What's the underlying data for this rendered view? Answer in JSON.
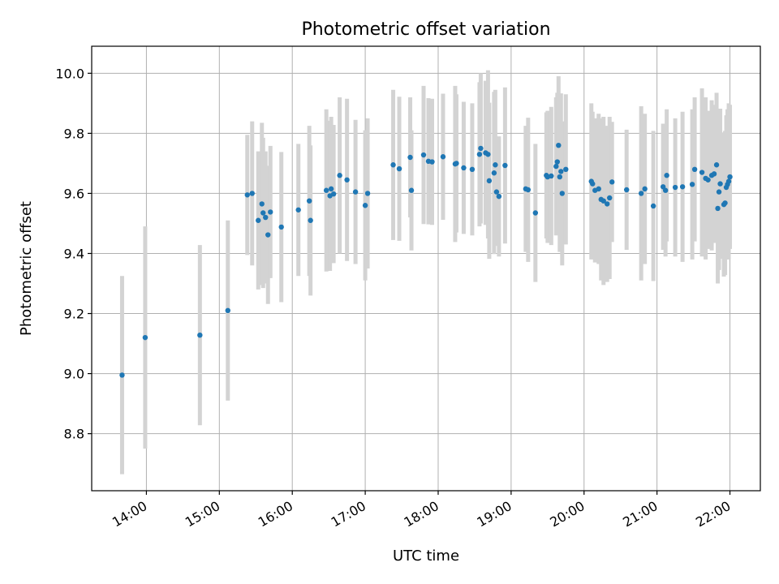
{
  "chart_data": {
    "type": "scatter",
    "title": "Photometric offset variation",
    "xlabel": "UTC time",
    "ylabel": "Photometric offset",
    "xlim": [
      "13:15",
      "22:25"
    ],
    "ylim": [
      8.61,
      10.09
    ],
    "x_ticks": [
      "14:00",
      "15:00",
      "16:00",
      "17:00",
      "18:00",
      "19:00",
      "20:00",
      "21:00",
      "22:00"
    ],
    "y_ticks": [
      "8.8",
      "9.0",
      "9.2",
      "9.4",
      "9.6",
      "9.8",
      "10.0"
    ],
    "grid": true,
    "colors": {
      "marker": "#1f77b4",
      "errorbar": "#d3d3d3"
    },
    "series": [
      {
        "x": [
          "13:40",
          "13:59",
          "14:44",
          "15:07",
          "15:23",
          "15:27",
          "15:32",
          "15:35",
          "15:36",
          "15:38",
          "15:40",
          "15:42",
          "15:51",
          "16:05",
          "16:14",
          "16:15",
          "16:28",
          "16:31",
          "16:32",
          "16:34",
          "16:39",
          "16:45",
          "16:52",
          "17:00",
          "17:02",
          "17:23",
          "17:28",
          "17:37",
          "17:38",
          "17:48",
          "17:52",
          "17:55",
          "18:04",
          "18:14",
          "18:15",
          "18:21",
          "18:28",
          "18:34",
          "18:35",
          "18:39",
          "18:41",
          "18:42",
          "18:46",
          "18:47",
          "18:48",
          "18:50",
          "18:55",
          "19:12",
          "19:14",
          "19:20",
          "19:29",
          "19:30",
          "19:33",
          "19:37",
          "19:38",
          "19:39",
          "19:40",
          "19:41",
          "19:42",
          "19:45",
          "20:06",
          "20:07",
          "20:09",
          "20:12",
          "20:14",
          "20:16",
          "20:19",
          "20:21",
          "20:23",
          "20:35",
          "20:47",
          "20:50",
          "20:57",
          "21:05",
          "21:07",
          "21:08",
          "21:15",
          "21:21",
          "21:29",
          "21:31",
          "21:37",
          "21:40",
          "21:42",
          "21:45",
          "21:47",
          "21:49",
          "21:50",
          "21:51",
          "21:52",
          "21:55",
          "21:56",
          "21:57",
          "21:58",
          "21:59",
          "22:00"
        ],
        "y": [
          8.995,
          9.12,
          9.128,
          9.21,
          9.595,
          9.6,
          9.51,
          9.565,
          9.535,
          9.52,
          9.462,
          9.538,
          9.488,
          9.545,
          9.575,
          9.51,
          9.61,
          9.592,
          9.615,
          9.598,
          9.66,
          9.645,
          9.605,
          9.56,
          9.6,
          9.695,
          9.682,
          9.72,
          9.61,
          9.728,
          9.707,
          9.705,
          9.722,
          9.698,
          9.7,
          9.685,
          9.68,
          9.73,
          9.75,
          9.735,
          9.73,
          9.642,
          9.668,
          9.695,
          9.605,
          9.59,
          9.693,
          9.615,
          9.612,
          9.535,
          9.66,
          9.655,
          9.658,
          9.69,
          9.705,
          9.76,
          9.655,
          9.673,
          9.6,
          9.68,
          9.64,
          9.632,
          9.61,
          9.615,
          9.58,
          9.575,
          9.565,
          9.585,
          9.638,
          9.612,
          9.6,
          9.615,
          9.558,
          9.622,
          9.61,
          9.66,
          9.62,
          9.622,
          9.63,
          9.68,
          9.67,
          9.65,
          9.645,
          9.66,
          9.665,
          9.695,
          9.55,
          9.605,
          9.632,
          9.563,
          9.568,
          9.62,
          9.63,
          9.64,
          9.655
        ],
        "yerr": [
          0.33,
          0.37,
          0.3,
          0.3,
          0.2,
          0.24,
          0.23,
          0.27,
          0.25,
          0.22,
          0.23,
          0.22,
          0.25,
          0.22,
          0.25,
          0.25,
          0.27,
          0.25,
          0.24,
          0.23,
          0.26,
          0.27,
          0.24,
          0.25,
          0.25,
          0.25,
          0.24,
          0.2,
          0.2,
          0.23,
          0.21,
          0.21,
          0.21,
          0.26,
          0.23,
          0.22,
          0.22,
          0.24,
          0.25,
          0.24,
          0.28,
          0.26,
          0.27,
          0.25,
          0.18,
          0.2,
          0.26,
          0.21,
          0.24,
          0.23,
          0.21,
          0.22,
          0.23,
          0.23,
          0.23,
          0.23,
          0.25,
          0.26,
          0.24,
          0.25,
          0.26,
          0.24,
          0.24,
          0.25,
          0.27,
          0.28,
          0.26,
          0.27,
          0.2,
          0.2,
          0.29,
          0.25,
          0.25,
          0.21,
          0.22,
          0.22,
          0.23,
          0.25,
          0.25,
          0.24,
          0.28,
          0.27,
          0.23,
          0.25,
          0.23,
          0.24,
          0.25,
          0.26,
          0.25,
          0.24,
          0.24,
          0.24,
          0.25,
          0.26,
          0.24
        ]
      }
    ]
  }
}
